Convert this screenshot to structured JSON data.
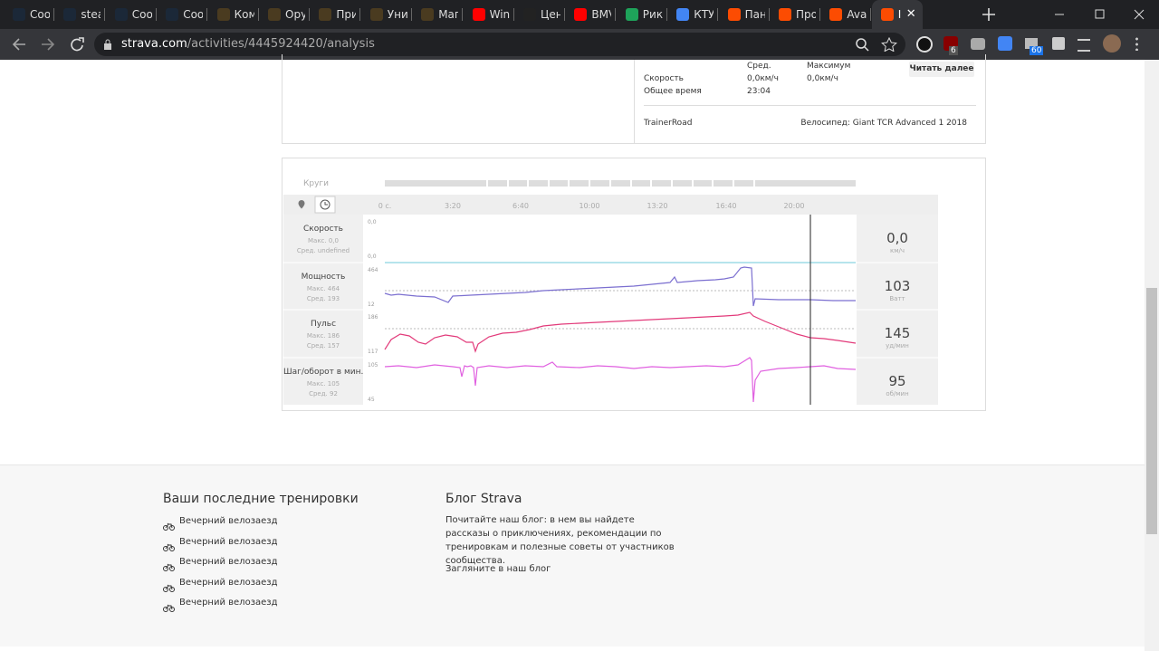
{
  "browser": {
    "tabs": [
      "Coo",
      "stea",
      "Coo",
      "Coo",
      "Ком",
      "Ору",
      "При",
      "Уни",
      "Маг",
      "Win",
      "Цен",
      "BMV",
      "Рик",
      "КТУ",
      "Пан",
      "Про",
      "Aval",
      "I"
    ],
    "url_host": "strava.com",
    "url_path": "/activities/4445924420/analysis",
    "badges": [
      "6",
      "60"
    ]
  },
  "summary": {
    "col_avg": "Сред.",
    "col_max": "Максимум",
    "read_more": "Читать далее",
    "rows": [
      {
        "label": "Скорость",
        "avg": "0,0км/ч",
        "max": "0,0км/ч"
      },
      {
        "label": "Общее время",
        "avg": "23:04"
      }
    ],
    "device": "TrainerRoad",
    "bike": "Велосипед: Giant TCR Advanced 1 2018"
  },
  "analysis": {
    "laps_label": "Круги",
    "time_ticks": [
      "0 с.",
      "3:20",
      "6:40",
      "10:00",
      "13:20",
      "16:40",
      "20:00"
    ],
    "streams": [
      {
        "name": "Скорость",
        "max": "Макс. 0,0",
        "avg": "Сред. undefined",
        "axis_top": "0,0",
        "axis_bottom": "0,0",
        "value": "0,0",
        "unit": "км/ч"
      },
      {
        "name": "Мощность",
        "max": "Макс. 464",
        "avg": "Сред. 193",
        "axis_top": "464",
        "axis_bottom": "12",
        "value": "103",
        "unit": "Ватт"
      },
      {
        "name": "Пульс",
        "max": "Макс. 186",
        "avg": "Сред. 157",
        "axis_top": "186",
        "axis_bottom": "117",
        "value": "145",
        "unit": "уд/мин"
      },
      {
        "name": "Шаг/оборот в мин.",
        "max": "Макс. 105",
        "avg": "Сред. 92",
        "axis_top": "105",
        "axis_bottom": "45",
        "value": "95",
        "unit": "об/мин"
      }
    ]
  },
  "footer": {
    "recent_title": "Ваши последние тренировки",
    "recent": [
      "Вечерний велозаезд",
      "Вечерний велозаезд",
      "Вечерний велозаезд",
      "Вечерний велозаезд",
      "Вечерний велозаезд"
    ],
    "blog_title": "Блог Strava",
    "blog_text": "Почитайте наш блог: в нем вы найдете рассказы о приключениях, рекомендации по тренировкам и полезные советы от участников сообщества.",
    "blog_link": "Загляните в наш блог"
  }
}
